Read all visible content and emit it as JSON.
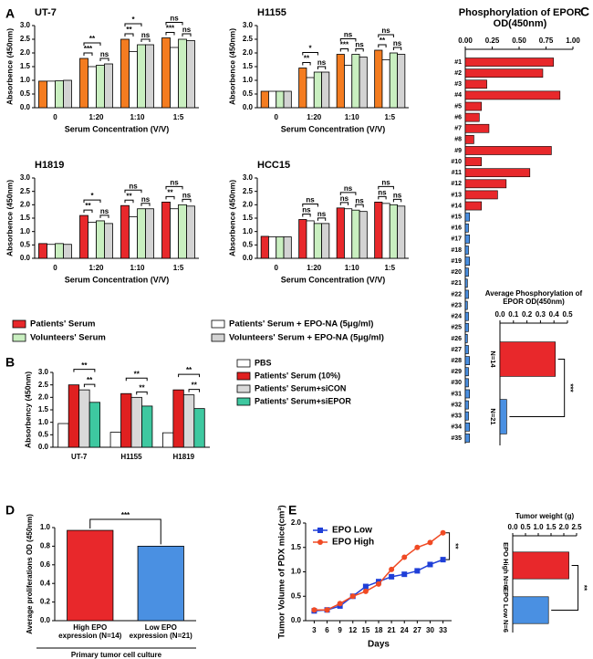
{
  "chart_data": [
    {
      "type": "bar",
      "panel": "A",
      "title": "UT-7",
      "ylabel": "Absorbence (450nm)",
      "xlabel": "Serum Concentration (V/V)",
      "legend": [
        {
          "name": "Patients' Serum",
          "color": "#e8282b"
        },
        {
          "name": "Patients' Serum + EPO-NA (5μg/ml)",
          "color": "#ffffff"
        },
        {
          "name": "Volunteers' Serum",
          "color": "#c9efc0"
        },
        {
          "name": "Volunteers' Serum + EPO-NA (5μg/ml)",
          "color": "#d3d3d3"
        }
      ],
      "categories": [
        "0",
        "1:20",
        "1:10",
        "1:5"
      ],
      "series": [
        {
          "color": "#f47c20",
          "values": [
            0.97,
            1.8,
            2.5,
            2.55
          ]
        },
        {
          "color": "#ffffff",
          "values": [
            0.97,
            1.5,
            2.05,
            2.2
          ]
        },
        {
          "color": "#c9efc0",
          "values": [
            0.98,
            1.55,
            2.3,
            2.5
          ]
        },
        {
          "color": "#d3d3d3",
          "values": [
            1.0,
            1.6,
            2.3,
            2.45
          ]
        }
      ],
      "ylim": [
        0,
        3
      ],
      "yticks": [
        {
          "value": 0,
          "label": "0.0"
        },
        {
          "value": 0.5,
          "label": "0.5"
        },
        {
          "value": 1,
          "label": "1.0"
        },
        {
          "value": 1.5,
          "label": "1.5"
        },
        {
          "value": 2,
          "label": "2.0"
        },
        {
          "value": 2.5,
          "label": "2.5"
        },
        {
          "value": 3,
          "label": "3.0"
        }
      ],
      "significance": [
        null,
        [
          "**",
          "***",
          "ns"
        ],
        [
          "*",
          "**",
          "ns"
        ],
        [
          "ns",
          "***",
          "ns"
        ]
      ]
    },
    {
      "type": "bar",
      "title": "H1155",
      "ylabel": "Absorbence (450nm)",
      "xlabel": "Serum Concentration (V/V)",
      "categories": [
        "0",
        "1:20",
        "1:10",
        "1:5"
      ],
      "series": [
        {
          "color": "#f47c20",
          "values": [
            0.6,
            1.45,
            1.95,
            2.1
          ]
        },
        {
          "color": "#ffffff",
          "values": [
            0.6,
            1.1,
            1.55,
            1.75
          ]
        },
        {
          "color": "#c9efc0",
          "values": [
            0.6,
            1.3,
            1.95,
            2.0
          ]
        },
        {
          "color": "#d3d3d3",
          "values": [
            0.6,
            1.3,
            1.85,
            1.95
          ]
        }
      ],
      "ylim": [
        0,
        3
      ],
      "yticks": [
        {
          "value": 0,
          "label": "0.0"
        },
        {
          "value": 0.5,
          "label": "0.5"
        },
        {
          "value": 1,
          "label": "1.0"
        },
        {
          "value": 1.5,
          "label": "1.5"
        },
        {
          "value": 2,
          "label": "2.0"
        },
        {
          "value": 2.5,
          "label": "2.5"
        },
        {
          "value": 3,
          "label": "3.0"
        }
      ],
      "significance": [
        null,
        [
          "*",
          "**",
          "ns"
        ],
        [
          "ns",
          "***",
          "ns"
        ],
        [
          "ns",
          "**",
          "ns"
        ]
      ]
    },
    {
      "type": "bar",
      "title": "H1819",
      "ylabel": "Absorbence (450nm)",
      "xlabel": "Serum Concentration (V/V)",
      "categories": [
        "0",
        "1:20",
        "1:10",
        "1:5"
      ],
      "series": [
        {
          "color": "#e8282b",
          "values": [
            0.55,
            1.6,
            1.97,
            2.1
          ]
        },
        {
          "color": "#ffffff",
          "values": [
            0.52,
            1.35,
            1.55,
            1.85
          ]
        },
        {
          "color": "#c9efc0",
          "values": [
            0.55,
            1.4,
            1.85,
            2.0
          ]
        },
        {
          "color": "#d3d3d3",
          "values": [
            0.52,
            1.3,
            1.85,
            1.95
          ]
        }
      ],
      "ylim": [
        0,
        3
      ],
      "yticks": [
        {
          "value": 0,
          "label": "0.0"
        },
        {
          "value": 0.5,
          "label": "0.5"
        },
        {
          "value": 1,
          "label": "1.0"
        },
        {
          "value": 1.5,
          "label": "1.5"
        },
        {
          "value": 2,
          "label": "2.0"
        },
        {
          "value": 2.5,
          "label": "2.5"
        },
        {
          "value": 3,
          "label": "3.0"
        }
      ],
      "significance": [
        null,
        [
          "*",
          "**",
          "ns"
        ],
        [
          "ns",
          "**",
          "ns"
        ],
        [
          "ns",
          "**",
          "ns"
        ]
      ]
    },
    {
      "type": "bar",
      "title": "HCC15",
      "ylabel": "Absorbence (450nm)",
      "xlabel": "Serum Concentration (V/V)",
      "categories": [
        "0",
        "1:20",
        "1:10",
        "1:5"
      ],
      "series": [
        {
          "color": "#e8282b",
          "values": [
            0.82,
            1.45,
            1.88,
            2.1
          ]
        },
        {
          "color": "#ffffff",
          "values": [
            0.8,
            1.4,
            1.85,
            2.05
          ]
        },
        {
          "color": "#c9efc0",
          "values": [
            0.8,
            1.3,
            1.8,
            2.0
          ]
        },
        {
          "color": "#d3d3d3",
          "values": [
            0.8,
            1.3,
            1.75,
            1.95
          ]
        }
      ],
      "ylim": [
        0,
        3
      ],
      "yticks": [
        {
          "value": 0,
          "label": "0.0"
        },
        {
          "value": 0.5,
          "label": "0.5"
        },
        {
          "value": 1,
          "label": "1.0"
        },
        {
          "value": 1.5,
          "label": "1.5"
        },
        {
          "value": 2,
          "label": "2.0"
        },
        {
          "value": 2.5,
          "label": "2.5"
        },
        {
          "value": 3,
          "label": "3.0"
        }
      ],
      "significance": [
        null,
        [
          "ns",
          "ns",
          "ns"
        ],
        [
          "ns",
          "ns",
          "ns"
        ],
        [
          "ns",
          "ns",
          "ns"
        ]
      ]
    },
    {
      "type": "bar",
      "panel": "B",
      "ylabel": "Absorbency (450nm)",
      "categories": [
        "UT-7",
        "H1155",
        "H1819"
      ],
      "series": [
        {
          "name": "PBS",
          "color": "#ffffff",
          "values": [
            0.95,
            0.6,
            0.58
          ]
        },
        {
          "name": "Patients' Serum (10%)",
          "color": "#e02020",
          "values": [
            2.5,
            2.15,
            2.3
          ]
        },
        {
          "name": "Patients' Serum+siCON",
          "color": "#d9d9d9",
          "values": [
            2.3,
            2.0,
            2.1
          ]
        },
        {
          "name": "Patients' Serum+siEPOR",
          "color": "#3ec8a0",
          "values": [
            1.8,
            1.65,
            1.55
          ]
        }
      ],
      "ylim": [
        0,
        3
      ],
      "yticks": [
        {
          "value": 0,
          "label": "0.0"
        },
        {
          "value": 0.5,
          "label": "0.5"
        },
        {
          "value": 1,
          "label": "1.0"
        },
        {
          "value": 1.5,
          "label": "1.5"
        },
        {
          "value": 2,
          "label": "2.0"
        },
        {
          "value": 2.5,
          "label": "2.5"
        },
        {
          "value": 3,
          "label": "3.0"
        }
      ],
      "significance": [
        [
          "**",
          "**"
        ],
        [
          "**",
          "**"
        ],
        [
          "**",
          "**"
        ]
      ]
    },
    {
      "type": "bar",
      "orientation": "horizontal",
      "panel": "C",
      "title": "Phosphorylation of EPOR OD(450nm)",
      "categories": [
        "#1",
        "#2",
        "#3",
        "#4",
        "#5",
        "#6",
        "#7",
        "#8",
        "#9",
        "#10",
        "#11",
        "#12",
        "#13",
        "#14",
        "#15",
        "#16",
        "#17",
        "#18",
        "#19",
        "#20",
        "#21",
        "#22",
        "#23",
        "#24",
        "#25",
        "#26",
        "#27",
        "#28",
        "#29",
        "#30",
        "#31",
        "#32",
        "#33",
        "#34",
        "#35"
      ],
      "series": [
        {
          "color": "#e8282b",
          "values": [
            0.82,
            0.72,
            0.2,
            0.88,
            0.15,
            0.13,
            0.22,
            0.08,
            0.8,
            0.15,
            0.6,
            0.38,
            0.3,
            0.15,
            null,
            null,
            null,
            null,
            null,
            null,
            null,
            null,
            null,
            null,
            null,
            null,
            null,
            null,
            null,
            null,
            null,
            null,
            null,
            null,
            null
          ]
        },
        {
          "color": "#4a90e2",
          "values": [
            null,
            null,
            null,
            null,
            null,
            null,
            null,
            null,
            null,
            null,
            null,
            null,
            null,
            null,
            0.04,
            0.03,
            0.04,
            0.03,
            0.04,
            0.03,
            0.02,
            0.03,
            0.02,
            0.03,
            0.03,
            0.02,
            0.03,
            0.04,
            0.03,
            0.03,
            0.04,
            0.03,
            0.03,
            0.04,
            0.04
          ]
        }
      ],
      "xlim": [
        0,
        1
      ],
      "xticks": [
        {
          "value": 0,
          "label": "0.00"
        },
        {
          "value": 0.25,
          "label": "0.25"
        },
        {
          "value": 0.5,
          "label": "0.50"
        },
        {
          "value": 0.75,
          "label": "0.75"
        },
        {
          "value": 1,
          "label": "1.00"
        }
      ]
    },
    {
      "type": "bar",
      "orientation": "horizontal",
      "title": "Average Phosphorylation of EPOR OD(450nm)",
      "categories": [
        "N=14",
        "N=21"
      ],
      "values": [
        0.41,
        0.05
      ],
      "colors": [
        "#e8282b",
        "#4a90e2"
      ],
      "xlim": [
        0,
        0.5
      ],
      "xticks": [
        {
          "value": 0,
          "label": "0.0"
        },
        0.1,
        0.2,
        0.3,
        0.4,
        0.5
      ],
      "significance": "***"
    },
    {
      "type": "bar",
      "panel": "D",
      "ylabel": "Average proliferations OD (450nm)",
      "xlabel": "Primary tumor cell culture",
      "categories": [
        "High EPO expression (N=14)",
        "Low EPO expression (N=21)"
      ],
      "values": [
        0.97,
        0.8
      ],
      "colors": [
        "#e8282b",
        "#4a90e2"
      ],
      "ylim": [
        0,
        1
      ],
      "yticks": [
        {
          "value": 0,
          "label": "0.0"
        },
        0.2,
        0.4,
        0.6,
        0.8,
        {
          "value": 1,
          "label": "1.0"
        }
      ],
      "significance": "***"
    },
    {
      "type": "line",
      "panel": "E",
      "ylabel": "Tumor Volume of PDX mice(cm³)",
      "xlabel": "Days",
      "x": [
        3,
        6,
        9,
        12,
        15,
        18,
        21,
        24,
        27,
        30,
        33
      ],
      "series": [
        {
          "name": "EPO Low",
          "color": "#1f3fd8",
          "marker": "square",
          "values": [
            0.2,
            0.22,
            0.3,
            0.5,
            0.7,
            0.8,
            0.9,
            0.95,
            1.02,
            1.15,
            1.25
          ]
        },
        {
          "name": "EPO High",
          "color": "#f04a24",
          "marker": "circle",
          "values": [
            0.22,
            0.22,
            0.35,
            0.5,
            0.6,
            0.75,
            1.05,
            1.3,
            1.5,
            1.6,
            1.8
          ]
        }
      ],
      "xlim": [
        1,
        35
      ],
      "xticks": [
        3,
        6,
        9,
        12,
        15,
        18,
        21,
        24,
        27,
        30,
        33
      ],
      "ylim": [
        0,
        2
      ],
      "yticks": [
        {
          "value": 0,
          "label": "0.0"
        },
        0.5,
        {
          "value": 1,
          "label": "1.0"
        },
        1.5,
        {
          "value": 2,
          "label": "2.0"
        }
      ],
      "significance": "**"
    },
    {
      "type": "bar",
      "orientation": "horizontal",
      "title": "Tumor weight (g)",
      "categories": [
        "EPO High N=6",
        "EPO Low N=6"
      ],
      "values": [
        2.2,
        1.4
      ],
      "colors": [
        "#e8282b",
        "#4a90e2"
      ],
      "xlim": [
        0,
        2.5
      ],
      "xticks": [
        {
          "value": 0,
          "label": "0.0"
        },
        0.5,
        {
          "value": 1,
          "label": "1.0"
        },
        1.5,
        {
          "value": 2,
          "label": "2.0"
        },
        2.5
      ],
      "significance": "**"
    }
  ]
}
